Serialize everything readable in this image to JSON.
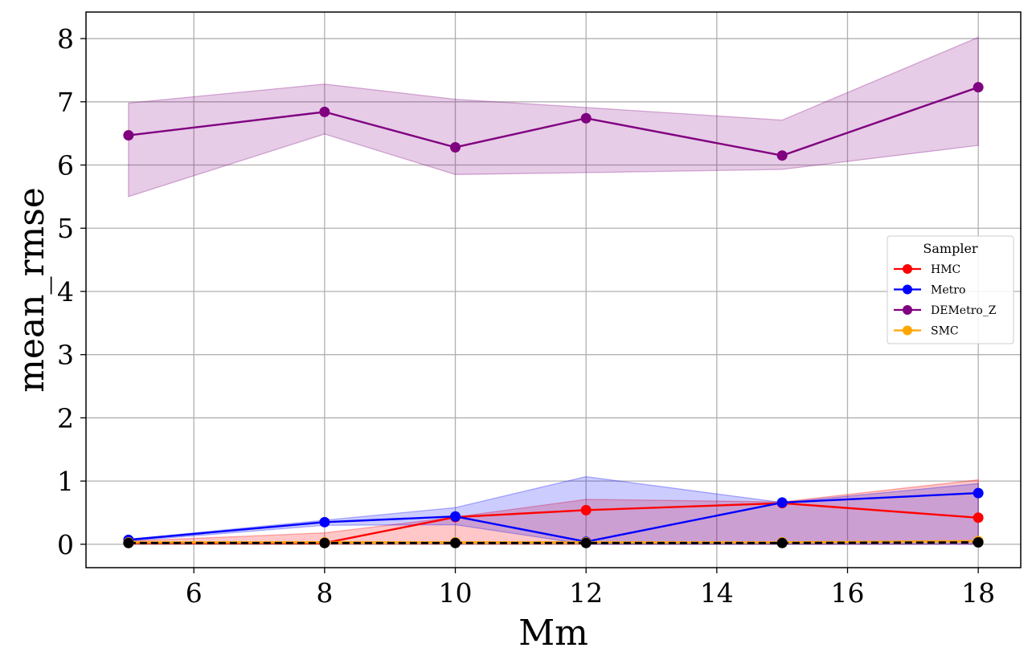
{
  "chart_data": {
    "type": "line",
    "title": "",
    "xlabel": "Mm",
    "ylabel": "mean_rmse",
    "xlim": [
      4.35,
      18.65
    ],
    "ylim": [
      -0.37,
      8.42
    ],
    "xticks": [
      6,
      8,
      10,
      12,
      14,
      16,
      18
    ],
    "yticks": [
      0,
      1,
      2,
      3,
      4,
      5,
      6,
      7,
      8
    ],
    "grid": true,
    "legend": {
      "title": "Sampler",
      "placement": "center-right"
    },
    "x": [
      5,
      8,
      10,
      12,
      15,
      18
    ],
    "series": [
      {
        "name": "HMC",
        "color": "#ff0000",
        "values": [
          0.02,
          0.02,
          0.43,
          0.54,
          0.65,
          0.42
        ],
        "band_low": [
          0.0,
          0.0,
          0.0,
          0.0,
          0.0,
          0.0
        ],
        "band_high": [
          0.05,
          0.18,
          0.43,
          0.71,
          0.67,
          1.02
        ],
        "band_color": "#ff0000",
        "band_opacity": 0.22,
        "in_legend": true
      },
      {
        "name": "Metro",
        "color": "#0000ff",
        "values": [
          0.07,
          0.35,
          0.44,
          0.04,
          0.66,
          0.81
        ],
        "band_low": [
          0.05,
          0.3,
          0.31,
          0.0,
          0.0,
          0.0
        ],
        "band_high": [
          0.08,
          0.38,
          0.58,
          1.07,
          0.66,
          0.96
        ],
        "band_color": "#0000ff",
        "band_opacity": 0.2,
        "in_legend": true
      },
      {
        "name": "DEMetro_Z",
        "color": "#800080",
        "values": [
          6.47,
          6.84,
          6.28,
          6.74,
          6.15,
          7.23
        ],
        "band_low": [
          5.5,
          6.49,
          5.85,
          5.88,
          5.93,
          6.31
        ],
        "band_high": [
          6.98,
          7.28,
          7.04,
          6.91,
          6.71,
          8.02
        ],
        "band_color": "#800080",
        "band_opacity": 0.2,
        "in_legend": true
      },
      {
        "name": "SMC",
        "color": "#ffa500",
        "values": [
          0.03,
          0.03,
          0.03,
          0.03,
          0.03,
          0.05
        ],
        "band_low": [
          0.02,
          0.02,
          0.02,
          0.02,
          0.02,
          0.03
        ],
        "band_high": [
          0.04,
          0.04,
          0.04,
          0.04,
          0.04,
          0.06
        ],
        "band_color": "#ffa500",
        "band_opacity": 0.25,
        "in_legend": true
      },
      {
        "name": "",
        "color": "#000000",
        "dashed": true,
        "values": [
          0.02,
          0.02,
          0.02,
          0.02,
          0.02,
          0.03
        ],
        "in_legend": false
      }
    ]
  }
}
